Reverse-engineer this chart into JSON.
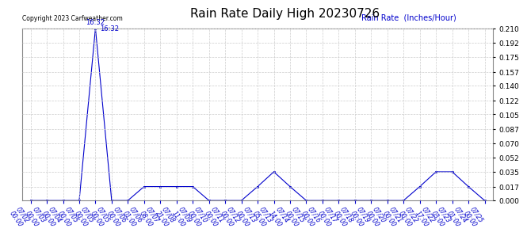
{
  "title": "Rain Rate Daily High 20230726",
  "ylabel": "Rain Rate  (Inches/Hour)",
  "copyright": "Copyright 2023 Carfweather.com",
  "peak_label": "16:32",
  "line_color": "#0000cc",
  "label_color": "#0000cc",
  "background_color": "#ffffff",
  "grid_color": "#cccccc",
  "ylim": [
    0.0,
    0.21
  ],
  "yticks": [
    0.0,
    0.017,
    0.035,
    0.052,
    0.07,
    0.087,
    0.105,
    0.122,
    0.14,
    0.157,
    0.175,
    0.192,
    0.21
  ],
  "x_values": [
    0,
    1,
    2,
    3,
    4,
    5,
    6,
    7,
    8,
    9,
    10,
    11,
    12,
    13,
    14,
    15,
    16,
    17,
    18,
    19,
    20,
    21,
    22,
    23,
    24,
    25,
    26,
    27,
    28
  ],
  "y_values": [
    0.0,
    0.0,
    0.0,
    0.0,
    0.21,
    0.0,
    0.0,
    0.017,
    0.017,
    0.017,
    0.017,
    0.0,
    0.0,
    0.0,
    0.017,
    0.035,
    0.017,
    0.0,
    0.0,
    0.0,
    0.0,
    0.0,
    0.0,
    0.0,
    0.017,
    0.035,
    0.035,
    0.017,
    0.0
  ],
  "tick_labels": [
    "07/02\n00:00",
    "07/03\n00:00",
    "07/04\n00:00",
    "07/05\n00:00",
    "07/05\n00:00",
    "07/05\n00:00",
    "07/06\n00:00",
    "07/06\n01:00",
    "07/07\n08:00",
    "07/08\n21:00",
    "07/09\n11:00",
    "07/10\n00:00",
    "07/11\n00:00",
    "07/12\n00:00",
    "07/13\n00:00",
    "07/13\n05:00",
    "07/14\n14:00",
    "07/15\n00:00",
    "07/16\n00:00",
    "07/17\n00:00",
    "07/18\n00:00",
    "07/19\n00:00",
    "07/20\n00:00",
    "07/21\n00:00",
    "07/22\n00:00",
    "07/22\n17:00",
    "07/23\n03:00",
    "07/24\n01:00",
    "07/25\n00:00"
  ]
}
